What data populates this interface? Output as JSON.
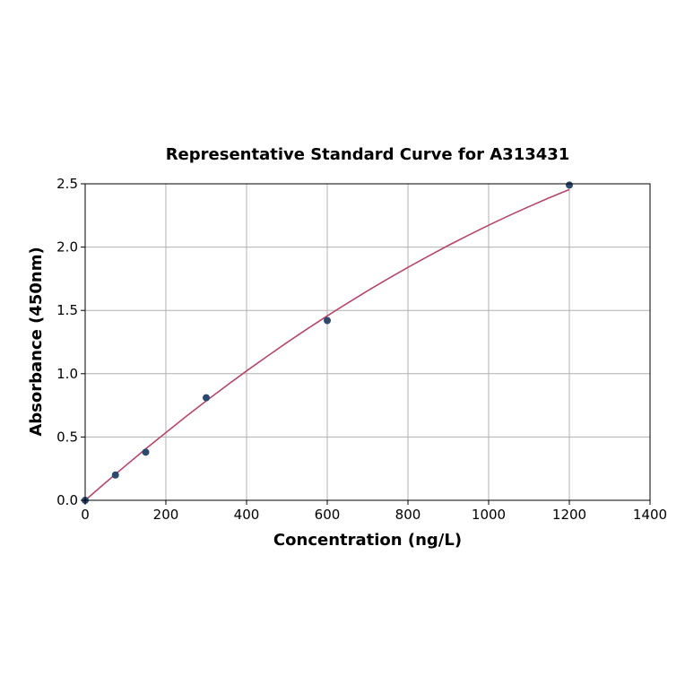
{
  "chart_data": {
    "type": "scatter",
    "title": "Representative Standard Curve for A313431",
    "xlabel": "Concentration (ng/L)",
    "ylabel": "Absorbance (450nm)",
    "xlim": [
      0,
      1400
    ],
    "ylim": [
      0,
      2.5
    ],
    "xticks": [
      0,
      200,
      400,
      600,
      800,
      1000,
      1200,
      1400
    ],
    "yticks": [
      0.0,
      0.5,
      1.0,
      1.5,
      2.0,
      2.5
    ],
    "xtick_labels": [
      "0",
      "200",
      "400",
      "600",
      "800",
      "1000",
      "1200",
      "1400"
    ],
    "ytick_labels": [
      "0.0",
      "0.5",
      "1.0",
      "1.5",
      "2.0",
      "2.5"
    ],
    "grid": true,
    "points": {
      "x": [
        0,
        75,
        150,
        300,
        600,
        1200
      ],
      "y": [
        0.0,
        0.2,
        0.38,
        0.81,
        1.42,
        2.49
      ]
    },
    "fit_curve": {
      "x": [
        0,
        50,
        100,
        150,
        200,
        250,
        300,
        350,
        400,
        450,
        500,
        550,
        600,
        650,
        700,
        750,
        800,
        850,
        900,
        950,
        1000,
        1050,
        1100,
        1150,
        1200
      ],
      "y": [
        0.0,
        0.138,
        0.273,
        0.406,
        0.535,
        0.662,
        0.785,
        0.905,
        1.022,
        1.135,
        1.246,
        1.353,
        1.457,
        1.557,
        1.655,
        1.749,
        1.84,
        1.928,
        2.013,
        2.094,
        2.173,
        2.248,
        2.32,
        2.389,
        2.455
      ]
    },
    "colors": {
      "points": "#2c4a6e",
      "curve": "#b5476a"
    }
  }
}
